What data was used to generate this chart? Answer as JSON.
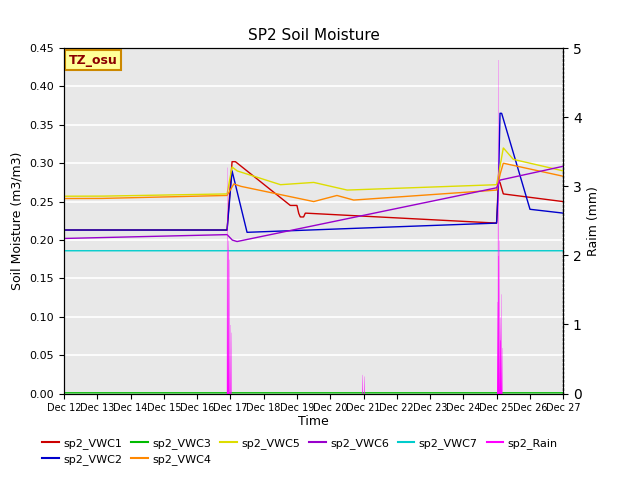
{
  "title": "SP2 Soil Moisture",
  "ylabel_left": "Soil Moisture (m3/m3)",
  "ylabel_right": "Raim (mm)",
  "xlabel": "Time",
  "ylim_left": [
    0.0,
    0.45
  ],
  "ylim_right": [
    0.0,
    5.0
  ],
  "background_color": "#e8e8e8",
  "annotation_text": "TZ_osu",
  "annotation_bg": "#ffff99",
  "annotation_border": "#cc8800",
  "colors": {
    "VWC1": "#cc0000",
    "VWC2": "#0000cc",
    "VWC3": "#00bb00",
    "VWC4": "#ff8800",
    "VWC5": "#dddd00",
    "VWC6": "#9900cc",
    "VWC7": "#00cccc",
    "Rain": "#ff00ff"
  },
  "x_tick_labels": [
    "Dec 12",
    "Dec 13",
    "Dec 14",
    "Dec 15",
    "Dec 16",
    "Dec 17",
    "Dec 18",
    "Dec 19",
    "Dec 20",
    "Dec 21",
    "Dec 22",
    "Dec 23",
    "Dec 24",
    "Dec 25",
    "Dec 26",
    "Dec 27"
  ],
  "n_points": 2000
}
